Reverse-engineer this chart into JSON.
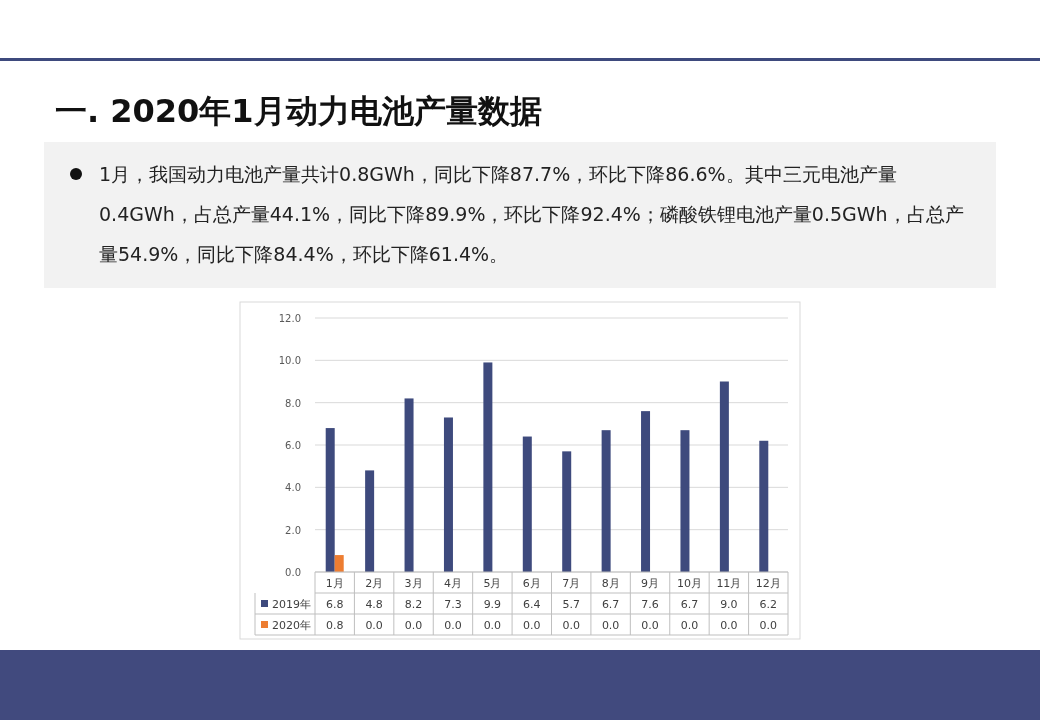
{
  "chart_data": {
    "type": "bar",
    "title": "一. 2020年1月动力电池产量数据",
    "annotations": [
      "1月，我国动力电池产量共计0.8GWh，同比下降87.7%，环比下降86.6%。其中三元电池产量0.4GWh，占总产量44.1%，同比下降89.9%，环比下降92.4%；磷酸铁锂电池产量0.5GWh，占总产量54.9%，同比下降84.4%，环比下降61.4%。"
    ],
    "categories": [
      "1月",
      "2月",
      "3月",
      "4月",
      "5月",
      "6月",
      "7月",
      "8月",
      "9月",
      "10月",
      "11月",
      "12月"
    ],
    "series": [
      {
        "name": "2019年",
        "color": "#3e4a7d",
        "values": [
          6.8,
          4.8,
          8.2,
          7.3,
          9.9,
          6.4,
          5.7,
          6.7,
          7.6,
          6.7,
          9.0,
          6.2
        ],
        "value_labels": [
          "6.8",
          "4.8",
          "8.2",
          "7.3",
          "9.9",
          "6.4",
          "5.7",
          "6.7",
          "7.6",
          "6.7",
          "9.0",
          "6.2"
        ]
      },
      {
        "name": "2020年",
        "color": "#ed7d31",
        "values": [
          0.8,
          0.0,
          0.0,
          0.0,
          0.0,
          0.0,
          0.0,
          0.0,
          0.0,
          0.0,
          0.0,
          0.0
        ],
        "value_labels": [
          "0.8",
          "0.0",
          "0.0",
          "0.0",
          "0.0",
          "0.0",
          "0.0",
          "0.0",
          "0.0",
          "0.0",
          "0.0",
          "0.0"
        ]
      }
    ],
    "ylim": [
      0,
      12
    ],
    "yticks": [
      {
        "value": 0,
        "label": "0.0"
      },
      {
        "value": 2,
        "label": "2.0"
      },
      {
        "value": 4,
        "label": "4.0"
      },
      {
        "value": 6,
        "label": "6.0"
      },
      {
        "value": 8,
        "label": "8.0"
      },
      {
        "value": 10,
        "label": "10.0"
      },
      {
        "value": 12,
        "label": "12.0"
      }
    ],
    "grid": "y",
    "legend": "bottom"
  }
}
